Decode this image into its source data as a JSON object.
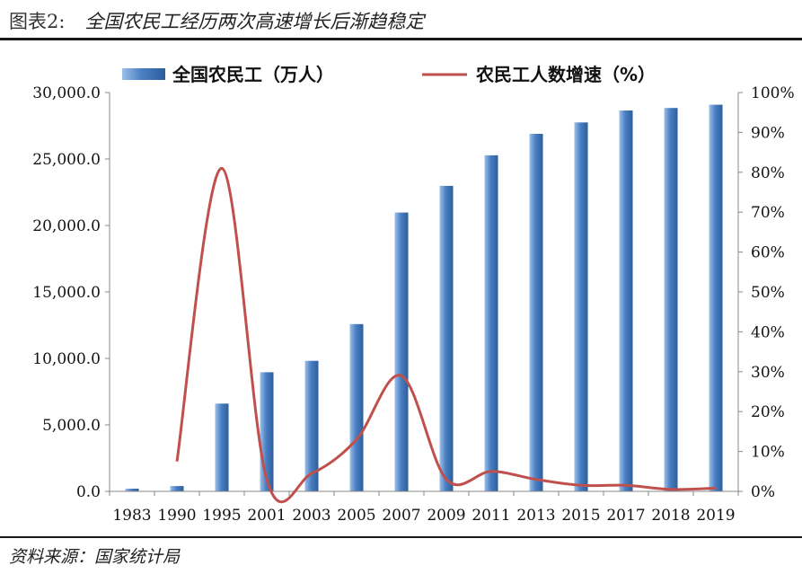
{
  "header": {
    "figure_label": "图表2:",
    "title": "全国农民工经历两次高速增长后渐趋稳定"
  },
  "footer": {
    "source": "资料来源：国家统计局"
  },
  "colors": {
    "bar": "#4a7fc1",
    "line": "#c0504d",
    "rule": "#1a1a1a"
  },
  "chart_data": {
    "type": "bar",
    "categories": [
      "1983",
      "1990",
      "1995",
      "2001",
      "2003",
      "2005",
      "2007",
      "2009",
      "2011",
      "2013",
      "2015",
      "2017",
      "2018",
      "2019"
    ],
    "series": [
      {
        "name": "全国农民工（万人）",
        "type": "bar",
        "axis": "left",
        "values": [
          200,
          400,
          6600,
          8960,
          9820,
          12580,
          20970,
          22980,
          25280,
          26890,
          27750,
          28650,
          28840,
          29080
        ]
      },
      {
        "name": "农民工人数增速（%）",
        "type": "line",
        "axis": "right",
        "values": [
          null,
          7.5,
          81,
          3,
          4.5,
          13,
          29,
          3,
          5,
          3,
          1.5,
          1.5,
          0.5,
          0.8
        ]
      }
    ],
    "y_left": {
      "lim": [
        0,
        30000
      ],
      "ticks": [
        "0.0",
        "5,000.0",
        "10,000.0",
        "15,000.0",
        "20,000.0",
        "25,000.0",
        "30,000.0"
      ]
    },
    "y_right": {
      "lim": [
        0,
        100
      ],
      "ticks": [
        "0%",
        "10%",
        "20%",
        "30%",
        "40%",
        "50%",
        "60%",
        "70%",
        "80%",
        "90%",
        "100%"
      ]
    },
    "legend_position": "top",
    "grid": false
  }
}
